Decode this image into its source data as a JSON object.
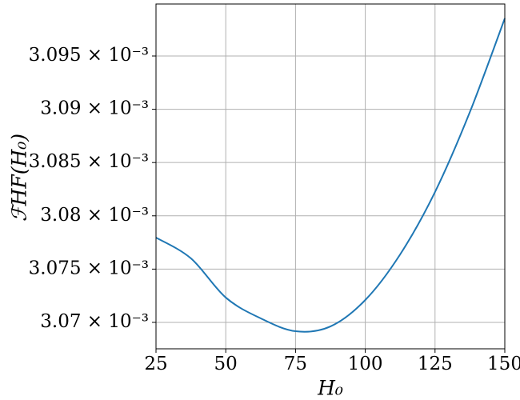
{
  "chart_data": {
    "type": "line",
    "x_label": "H₀",
    "y_label": "ℱHF(H₀)",
    "x": [
      25,
      37.5,
      50,
      62.5,
      75,
      87.5,
      100,
      112.5,
      125,
      137.5,
      150
    ],
    "series": [
      {
        "color": "#1f77b4",
        "values": [
          0.00307796,
          0.00307601,
          0.00307233,
          0.00307038,
          0.00306917,
          0.00306962,
          0.0030721,
          0.00307638,
          0.00308224,
          0.00308975,
          0.00309853
        ]
      }
    ],
    "xlim": [
      25,
      150
    ],
    "xticks": [
      25,
      50,
      75,
      100,
      125,
      150
    ],
    "ylim": [
      0.00306752,
      0.00309988
    ],
    "yticks": [
      {
        "value": 0.00307,
        "label": "3.07 × 10⁻³"
      },
      {
        "value": 0.003075,
        "label": "3.075 × 10⁻³"
      },
      {
        "value": 0.00308,
        "label": "3.08 × 10⁻³"
      },
      {
        "value": 0.003085,
        "label": "3.085 × 10⁻³"
      },
      {
        "value": 0.00309,
        "label": "3.09 × 10⁻³"
      },
      {
        "value": 0.003095,
        "label": "3.095 × 10⁻³"
      }
    ],
    "grid": true
  }
}
